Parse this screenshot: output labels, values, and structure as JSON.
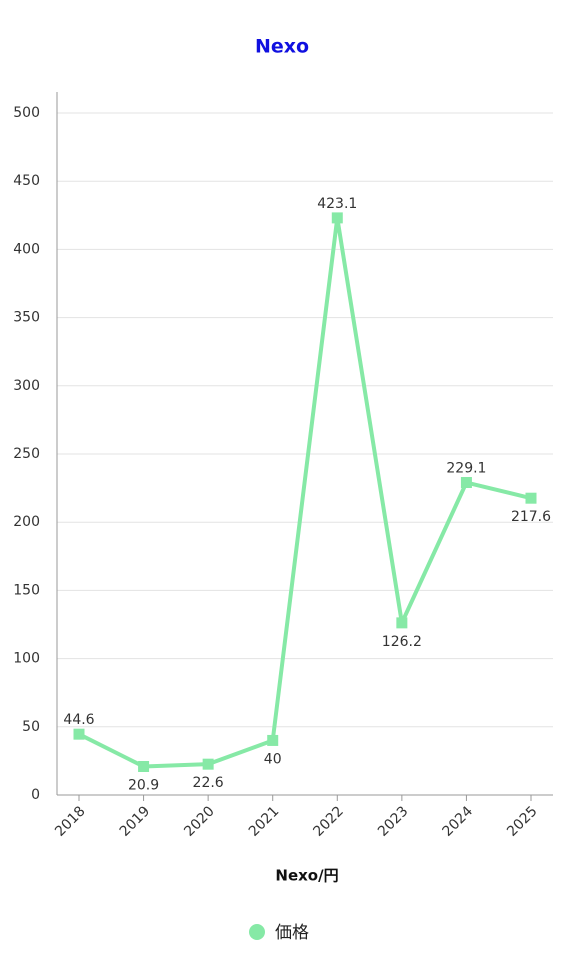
{
  "chart_data": {
    "type": "line",
    "title": "Nexo",
    "x_label": "Nexo/円",
    "categories": [
      "2018",
      "2019",
      "2020",
      "2021",
      "2022",
      "2023",
      "2024",
      "2025"
    ],
    "series": [
      {
        "name": "価格",
        "color": "#86e9a6",
        "values": [
          44.6,
          20.9,
          22.6,
          40,
          423.1,
          126.2,
          229.1,
          217.6
        ]
      }
    ],
    "ylim": [
      0,
      500
    ],
    "yticks": [
      0,
      50,
      100,
      150,
      200,
      250,
      300,
      350,
      400,
      450,
      500
    ],
    "grid": true,
    "legend": "bottom"
  }
}
